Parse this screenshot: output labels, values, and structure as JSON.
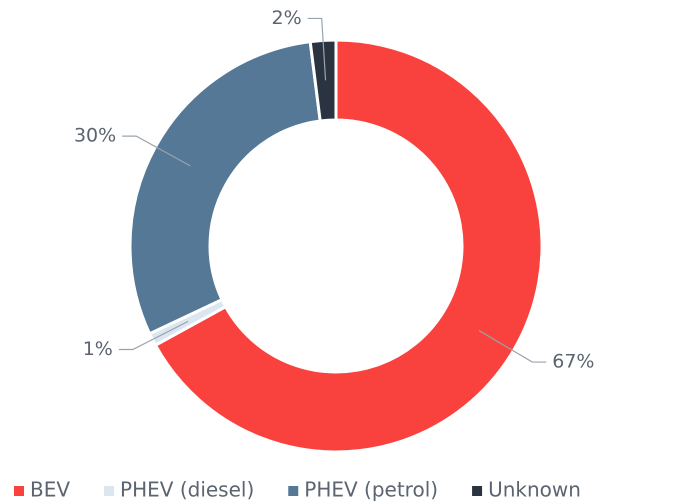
{
  "chart_data": {
    "type": "pie",
    "donut": true,
    "categories": [
      "BEV",
      "PHEV (diesel)",
      "PHEV (petrol)",
      "Unknown"
    ],
    "values": [
      67,
      1,
      30,
      2
    ],
    "value_labels": [
      "67%",
      "1%",
      "30%",
      "2%"
    ],
    "colors": [
      "#f9423d",
      "#dae6f0",
      "#547895",
      "#2a3440"
    ],
    "legend": "bottom"
  }
}
